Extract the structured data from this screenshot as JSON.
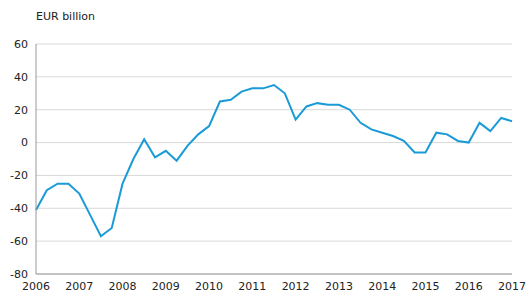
{
  "chart_data": {
    "type": "line",
    "y_label": "EUR billion",
    "categories": [
      "2006",
      null,
      null,
      null,
      "2007",
      null,
      null,
      null,
      "2008",
      null,
      null,
      null,
      "2009",
      null,
      null,
      null,
      "2010",
      null,
      null,
      null,
      "2011",
      null,
      null,
      null,
      "2012",
      null,
      null,
      null,
      "2013",
      null,
      null,
      null,
      "2014",
      null,
      null,
      null,
      "2015",
      null,
      null,
      null,
      "2016",
      null,
      null,
      null,
      "2017"
    ],
    "values": [
      -41,
      -29,
      -25,
      -25,
      -31,
      -44,
      -57,
      -52,
      -25,
      -10,
      2,
      -9,
      -5,
      -11,
      -2,
      5,
      10,
      25,
      26,
      31,
      33,
      33,
      35,
      30,
      14,
      22,
      24,
      23,
      23,
      20,
      12,
      8,
      6,
      4,
      1,
      -6,
      -6,
      6,
      5,
      1,
      0,
      12,
      7,
      15,
      13
    ],
    "color": "#1a9bd7",
    "ylim": [
      -80,
      60
    ],
    "yticks": [
      -80,
      -60,
      -40,
      -20,
      0,
      20,
      40,
      60
    ],
    "grid": true
  }
}
